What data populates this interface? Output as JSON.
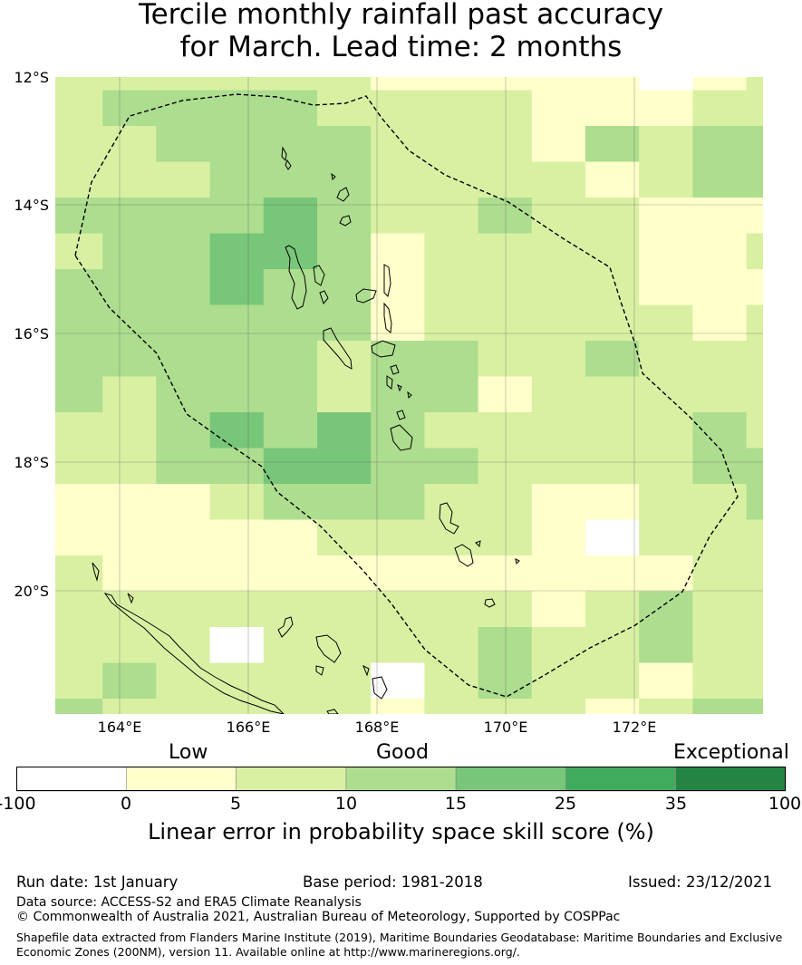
{
  "title": {
    "line1": "Tercile monthly rainfall past accuracy",
    "line2": "for March. Lead time: 2 months"
  },
  "map": {
    "lat_labels": [
      "12°S",
      "14°S",
      "16°S",
      "18°S",
      "20°S"
    ],
    "lon_labels": [
      "164°E",
      "166°E",
      "168°E",
      "170°E",
      "172°E"
    ],
    "lon_range": [
      163,
      174
    ],
    "lat_range": [
      -21.9,
      -12
    ],
    "grid": true,
    "boundary_line": "dashed",
    "cell_categories": [
      [
        2,
        2,
        2,
        2,
        2,
        2,
        1,
        1,
        1,
        1,
        1,
        0,
        1,
        2
      ],
      [
        2,
        3,
        3,
        3,
        3,
        2,
        2,
        2,
        2,
        1,
        1,
        1,
        2,
        2
      ],
      [
        2,
        2,
        3,
        3,
        3,
        3,
        2,
        2,
        2,
        1,
        3,
        2,
        3,
        3
      ],
      [
        2,
        2,
        2,
        3,
        3,
        3,
        2,
        2,
        2,
        2,
        1,
        2,
        3,
        3
      ],
      [
        3,
        3,
        3,
        3,
        4,
        3,
        2,
        2,
        3,
        2,
        2,
        1,
        1,
        1
      ],
      [
        2,
        3,
        3,
        4,
        4,
        3,
        1,
        2,
        2,
        2,
        2,
        1,
        1,
        2
      ],
      [
        3,
        3,
        3,
        4,
        3,
        3,
        1,
        2,
        2,
        2,
        2,
        1,
        1,
        1
      ],
      [
        3,
        3,
        3,
        3,
        3,
        3,
        1,
        2,
        2,
        2,
        2,
        2,
        1,
        2
      ],
      [
        3,
        3,
        3,
        3,
        3,
        2,
        3,
        3,
        2,
        2,
        3,
        2,
        2,
        2
      ],
      [
        3,
        2,
        3,
        3,
        3,
        2,
        3,
        3,
        1,
        2,
        2,
        2,
        2,
        2
      ],
      [
        2,
        2,
        3,
        4,
        3,
        4,
        3,
        2,
        2,
        2,
        2,
        2,
        3,
        2
      ],
      [
        2,
        2,
        3,
        3,
        4,
        4,
        3,
        3,
        2,
        2,
        2,
        2,
        3,
        3
      ],
      [
        1,
        1,
        1,
        2,
        3,
        3,
        3,
        2,
        2,
        1,
        1,
        2,
        2,
        3
      ],
      [
        1,
        1,
        1,
        1,
        1,
        2,
        2,
        2,
        2,
        1,
        0,
        2,
        2,
        2
      ],
      [
        2,
        1,
        1,
        1,
        1,
        1,
        1,
        1,
        1,
        1,
        1,
        1,
        2,
        2
      ],
      [
        2,
        2,
        2,
        2,
        2,
        2,
        2,
        2,
        2,
        1,
        2,
        3,
        2,
        2
      ],
      [
        2,
        2,
        2,
        0,
        2,
        2,
        2,
        2,
        3,
        2,
        2,
        3,
        2,
        2
      ],
      [
        2,
        3,
        2,
        2,
        2,
        2,
        0,
        2,
        3,
        2,
        2,
        1,
        2,
        2
      ],
      [
        3,
        2,
        2,
        2,
        2,
        2,
        1,
        2,
        2,
        2,
        1,
        2,
        3,
        3
      ]
    ]
  },
  "colorbar": {
    "categories": [
      "Low",
      "Good",
      "Exceptional"
    ],
    "ticks": [
      "-100",
      "0",
      "5",
      "10",
      "15",
      "25",
      "35",
      "100"
    ],
    "colors": [
      "#ffffff",
      "#ffffcc",
      "#d9f0a3",
      "#addd8e",
      "#78c679",
      "#41ab5d",
      "#238443"
    ],
    "label": "Linear error in probability space skill score (%)"
  },
  "footer": {
    "run_date": "Run date: 1st January",
    "base_period": "Base period: 1981-2018",
    "issued": "Issued: 23/12/2021",
    "data_source": "Data source: ACCESS-S2 and ERA5 Climate Reanalysis",
    "copyright": "© Commonwealth of Australia 2021, Australian Bureau of Meteorology, Supported by COSPPac",
    "shapefile_line1": "Shapefile data extracted from Flanders Marine Institute (2019), Maritime Boundaries Geodatabase: Maritime Boundaries and Exclusive",
    "shapefile_line2": "Economic Zones (200NM), version 11. Available online at http://www.marineregions.org/."
  }
}
